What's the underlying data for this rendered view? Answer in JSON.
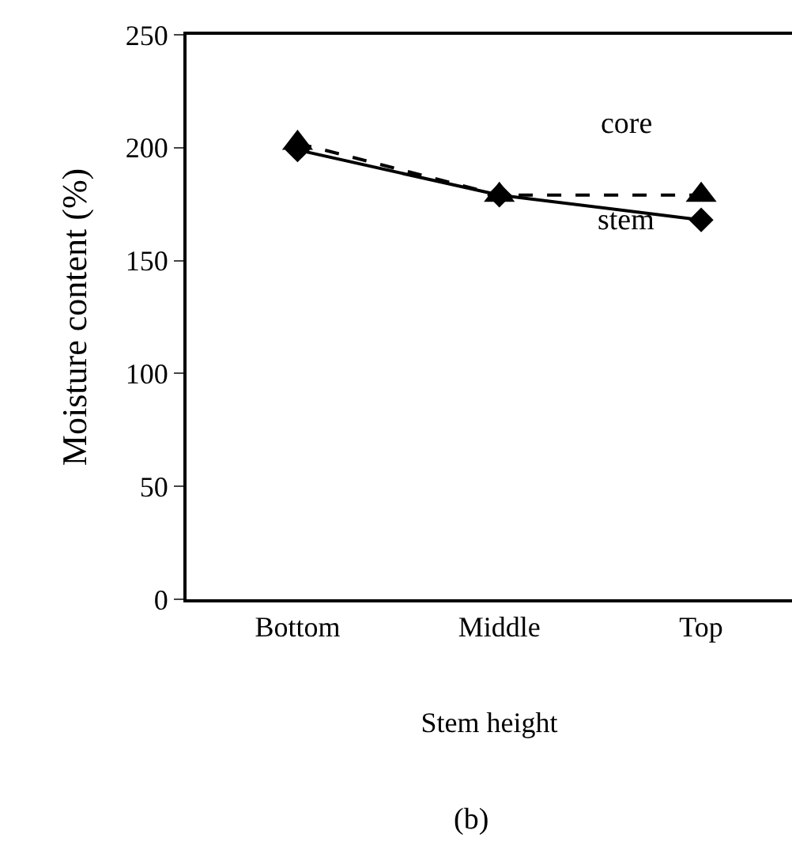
{
  "chart_data": {
    "type": "line",
    "xlabel": "Stem height",
    "ylabel": "Moisture content (%)",
    "categories": [
      "Bottom",
      "Middle",
      "Top"
    ],
    "series": [
      {
        "name": "core",
        "color": "#000000",
        "values": [
          202,
          179,
          179
        ],
        "marker": "triangle",
        "line_style": "dashed"
      },
      {
        "name": "stem",
        "color": "#000000",
        "values": [
          199,
          179,
          168
        ],
        "marker": "diamond",
        "line_style": "solid"
      }
    ],
    "ylim": [
      0,
      250
    ],
    "yticks": [
      0,
      50,
      100,
      150,
      200,
      250
    ],
    "grid": false,
    "legend": false,
    "annotations": [
      "(b)"
    ]
  }
}
